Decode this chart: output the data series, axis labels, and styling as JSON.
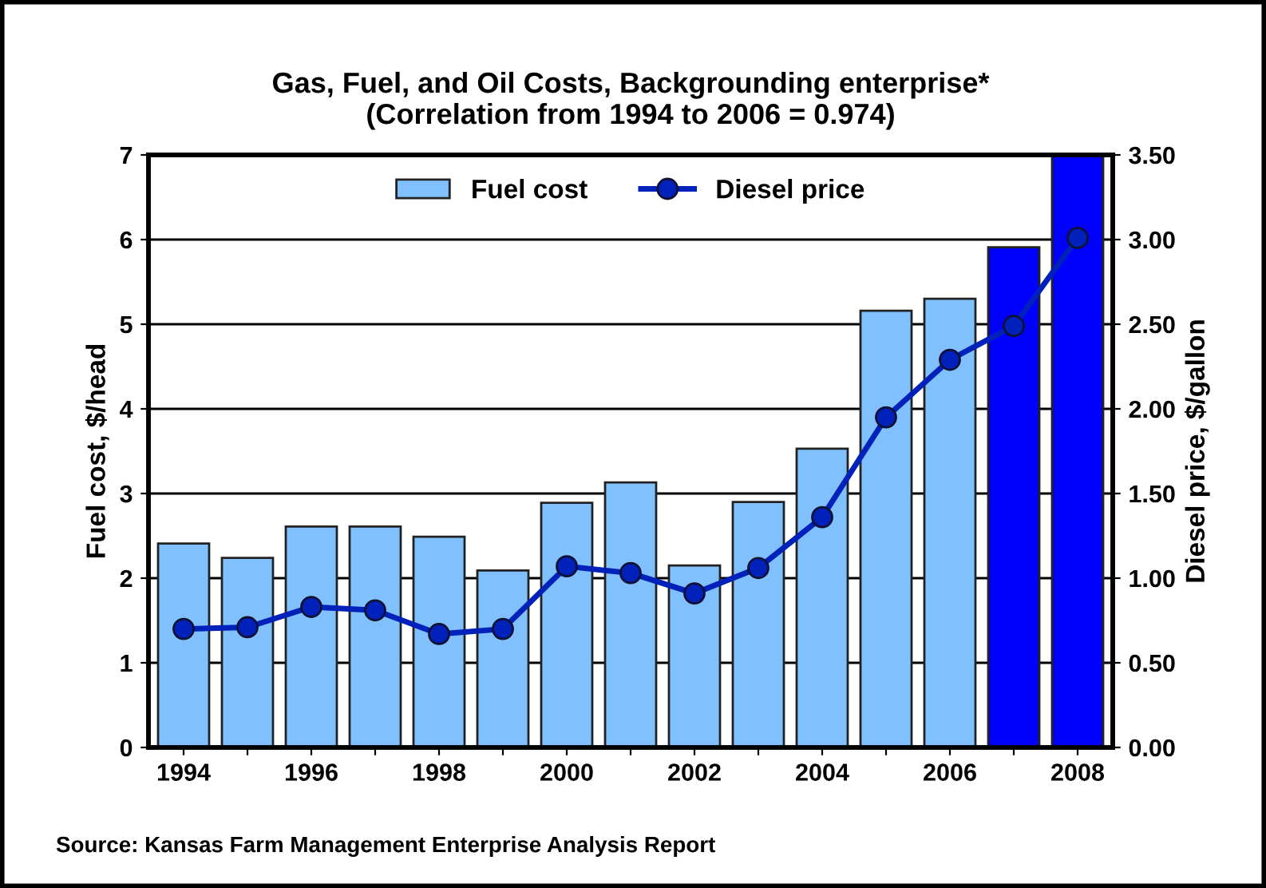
{
  "chart_data": {
    "type": "bar",
    "title": "Gas, Fuel, and Oil Costs, Backgrounding enterprise*\n(Correlation from 1994 to 2006 = 0.974)",
    "categories": [
      "1994",
      null,
      "1996",
      null,
      "1998",
      null,
      "2000",
      null,
      "2002",
      null,
      "2004",
      null,
      "2006",
      null,
      "2008"
    ],
    "series": [
      {
        "name": "Fuel cost",
        "color": "#80c0ff",
        "colors": [
          "#80c0ff",
          "#80c0ff",
          "#80c0ff",
          "#80c0ff",
          "#80c0ff",
          "#80c0ff",
          "#80c0ff",
          "#80c0ff",
          "#80c0ff",
          "#80c0ff",
          "#80c0ff",
          "#80c0ff",
          "#80c0ff",
          "#0000ff",
          "#0000ff"
        ],
        "values": [
          2.41,
          2.24,
          2.61,
          2.61,
          2.49,
          2.09,
          2.89,
          3.13,
          2.15,
          2.9,
          3.53,
          5.16,
          5.3,
          5.91,
          7.0
        ]
      },
      {
        "name": "Diesel price",
        "type": "line",
        "axis": "y2",
        "color": "#0022bb",
        "marker": "circle",
        "values": [
          0.7,
          0.71,
          0.83,
          0.81,
          0.67,
          0.7,
          1.07,
          1.03,
          0.91,
          1.06,
          1.36,
          1.95,
          2.29,
          2.49,
          3.01
        ]
      }
    ],
    "ylabel": "Fuel cost, $/head",
    "y2label": "Diesel price, $/gallon",
    "ylim": [
      0,
      7
    ],
    "yticks": [
      0,
      1,
      2,
      3,
      4,
      5,
      6,
      7
    ],
    "y2lim": [
      0,
      3.5
    ],
    "y2ticks": [
      {
        "value": 0,
        "label": "0.00"
      },
      {
        "value": 0.5,
        "label": "0.50"
      },
      {
        "value": 1,
        "label": "1.00"
      },
      {
        "value": 1.5,
        "label": "1.50"
      },
      {
        "value": 2,
        "label": "2.00"
      },
      {
        "value": 2.5,
        "label": "2.50"
      },
      {
        "value": 3,
        "label": "3.00"
      },
      {
        "value": 3.5,
        "label": "3.50"
      }
    ],
    "grid": "y",
    "legend": "top",
    "annotations": [
      "Source: Kansas Farm Management Enterprise Analysis Report"
    ]
  }
}
